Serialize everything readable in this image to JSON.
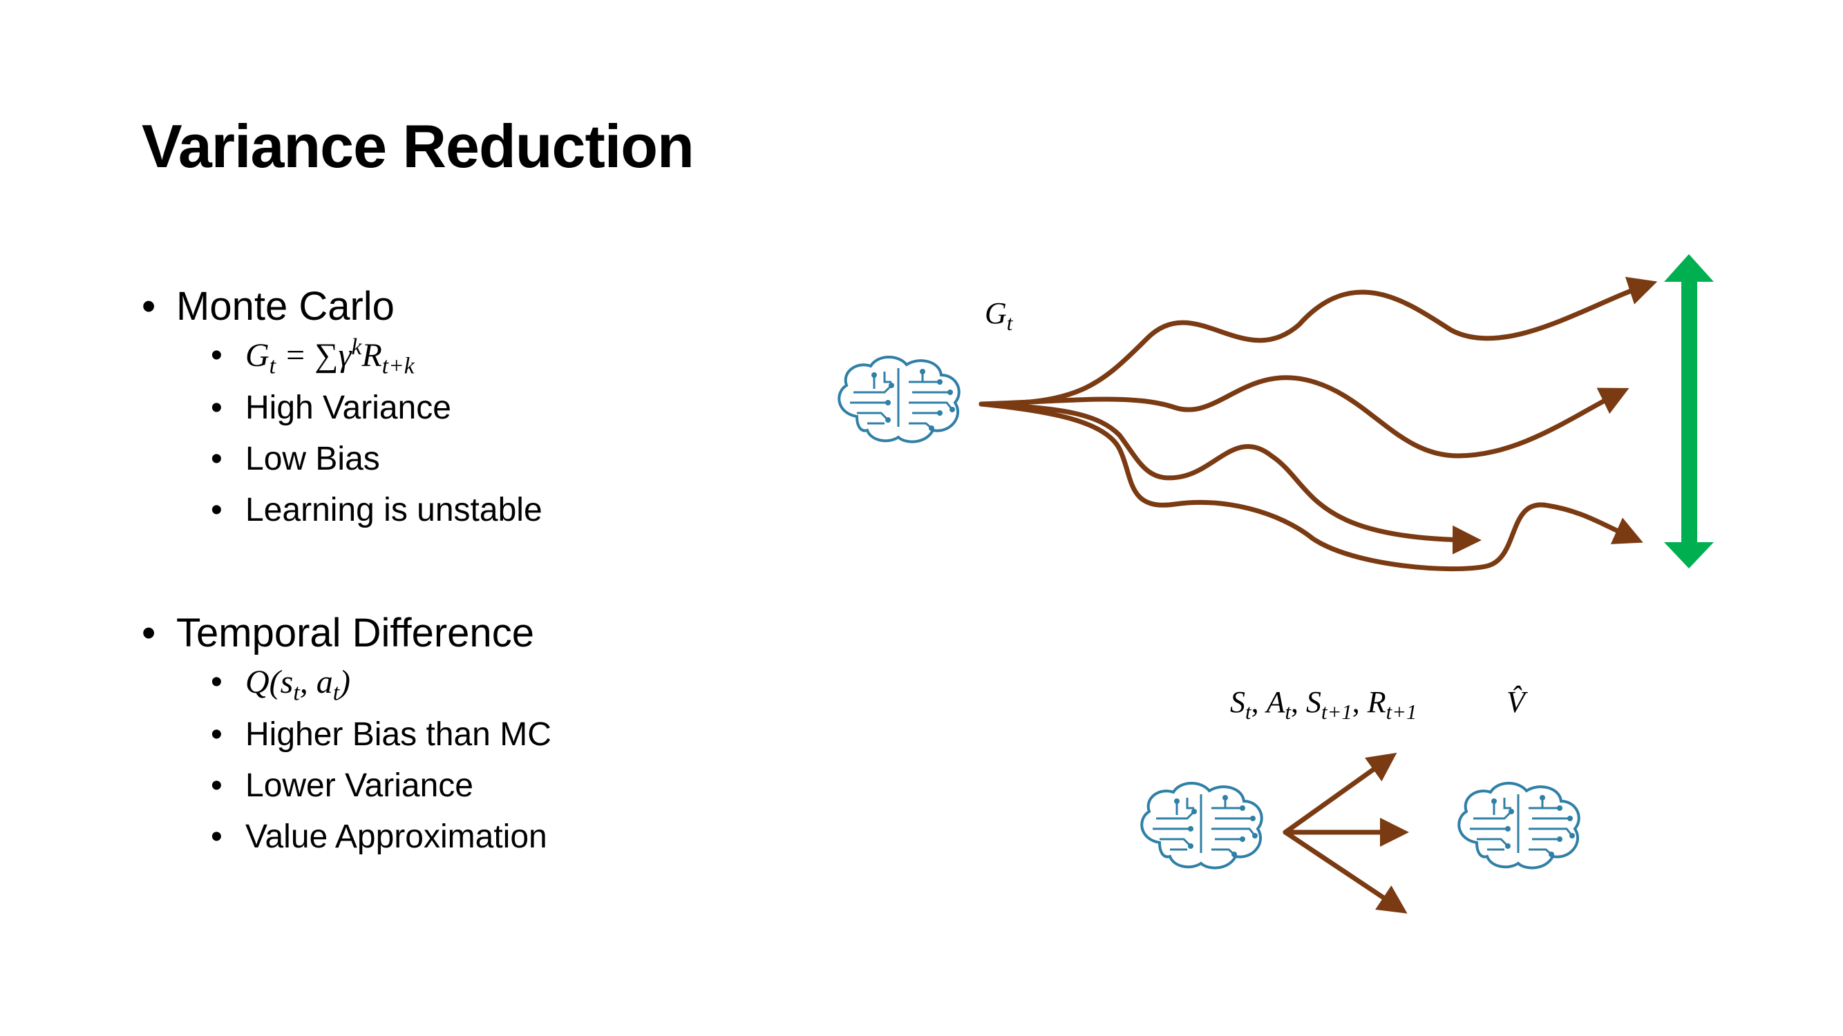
{
  "slide": {
    "title": "Variance Reduction"
  },
  "monte_carlo": {
    "heading": "Monte Carlo",
    "formula": {
      "g": "G",
      "g_sub": "t",
      "eq": " = ∑",
      "gamma": "γ",
      "gamma_sup": "k",
      "r": "R",
      "r_sub": "t+k"
    },
    "items": [
      "High Variance",
      "Low Bias",
      "Learning is unstable"
    ]
  },
  "temporal_difference": {
    "heading": "Temporal Difference",
    "formula": {
      "q": "Q",
      "open": "(",
      "s": "s",
      "s_sub": "t",
      "comma": ", ",
      "a": "a",
      "a_sub": "t",
      "close": ")"
    },
    "items": [
      "Higher Bias than MC",
      "Lower Variance",
      "Value Approximation"
    ]
  },
  "diagram": {
    "mc_label": {
      "g": "G",
      "g_sub": "t"
    },
    "td_label": {
      "s1": "S",
      "s1_sub": "t",
      "c1": ", ",
      "a": "A",
      "a_sub": "t",
      "c2": ", ",
      "s2": "S",
      "s2_sub": "t+1",
      "c3": ", ",
      "r": "R",
      "r_sub": "t+1"
    },
    "v_hat_label": "V̂",
    "colors": {
      "arrow": "#7a3a12",
      "variance_arrow": "#00b050",
      "brain": "#2f7fa6"
    }
  },
  "bullet_glyph": "•"
}
